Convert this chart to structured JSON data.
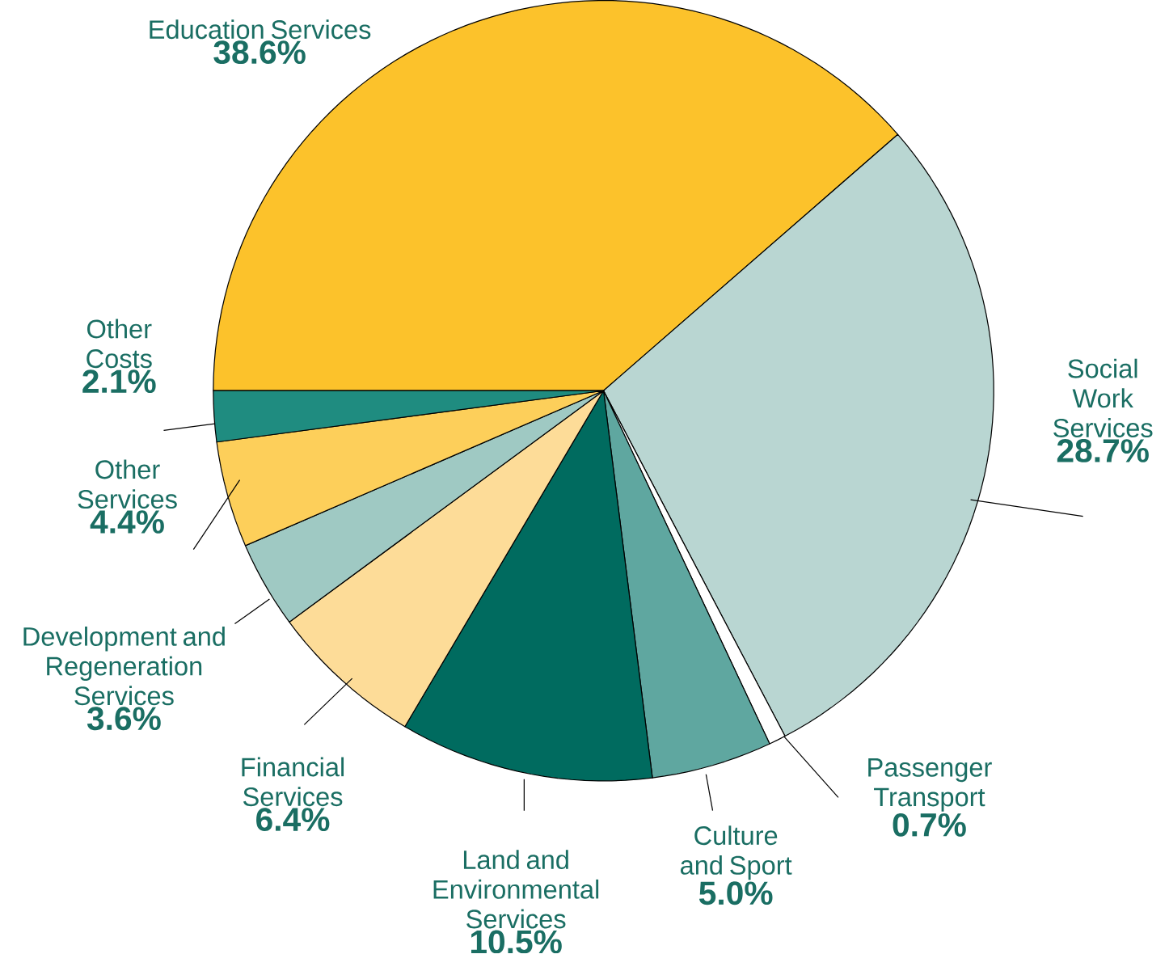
{
  "chart_data": {
    "type": "pie",
    "categories": [
      "Education Services",
      "Social Work Services",
      "Passenger Transport",
      "Culture and Sport",
      "Land and Environmental Services",
      "Financial Services",
      "Development and Regeneration Services",
      "Other Services",
      "Other Costs"
    ],
    "values": [
      38.6,
      28.7,
      0.7,
      5.0,
      10.5,
      6.4,
      3.6,
      4.4,
      2.1
    ],
    "value_labels": [
      "38.6%",
      "28.7%",
      "0.7%",
      "5.0%",
      "10.5%",
      "6.4%",
      "3.6%",
      "4.4%",
      "2.1%"
    ],
    "colors": [
      "#fcc22b",
      "#b9d6d2",
      "#ffffff",
      "#5fa7a0",
      "#006b5f",
      "#fddc98",
      "#9fc9c3",
      "#fdcf5a",
      "#1f8c80"
    ]
  }
}
